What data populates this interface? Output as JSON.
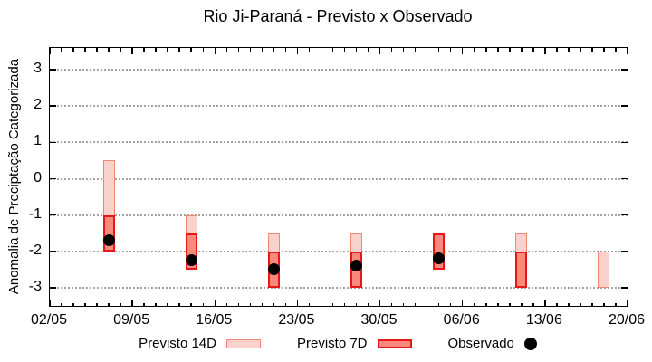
{
  "title": "Rio Ji-Paraná - Previsto x Observado",
  "chart_data": {
    "type": "bar",
    "subtype": "forecast-range-bars-with-observed-points",
    "title": "Rio Ji-Paraná - Previsto x Observado",
    "xlabel": "",
    "ylabel": "Anomalia de Preciptação Categorizada",
    "grid": "horizontal-dotted",
    "legend_position": "below-plot",
    "ylim": [
      -3.5,
      3.6
    ],
    "y_ticks": [
      3,
      2,
      1,
      0,
      -1,
      -2,
      -3
    ],
    "xlim_days": [
      0,
      49
    ],
    "x_ticks": [
      {
        "label": "02/05",
        "day": 0
      },
      {
        "label": "09/05",
        "day": 7
      },
      {
        "label": "16/05",
        "day": 14
      },
      {
        "label": "23/05",
        "day": 21
      },
      {
        "label": "30/05",
        "day": 28
      },
      {
        "label": "06/06",
        "day": 35
      },
      {
        "label": "13/06",
        "day": 42
      },
      {
        "label": "20/06",
        "day": 49
      }
    ],
    "x_minor_tick_interval_days": 1,
    "series": [
      {
        "name": "Previsto 14D",
        "type": "range-bar",
        "fill": "#f9d3cb",
        "border": "#ef8775",
        "points": [
          {
            "date": "07/05",
            "day": 5,
            "high": 0.5,
            "low": -2.0
          },
          {
            "date": "14/05",
            "day": 12,
            "high": -1.0,
            "low": -2.5
          },
          {
            "date": "21/05",
            "day": 19,
            "high": -1.5,
            "low": -3.0
          },
          {
            "date": "28/05",
            "day": 26,
            "high": -1.5,
            "low": -3.0
          },
          {
            "date": "04/06",
            "day": 33,
            "high": -1.5,
            "low": -2.5
          },
          {
            "date": "11/06",
            "day": 40,
            "high": -1.5,
            "low": -3.0
          },
          {
            "date": "18/06",
            "day": 47,
            "high": -2.0,
            "low": -3.0
          }
        ]
      },
      {
        "name": "Previsto 7D",
        "type": "range-bar",
        "fill": "#f9897d",
        "border": "#e51717",
        "points": [
          {
            "date": "07/05",
            "day": 5,
            "high": -1.0,
            "low": -2.0
          },
          {
            "date": "14/05",
            "day": 12,
            "high": -1.5,
            "low": -2.5
          },
          {
            "date": "21/05",
            "day": 19,
            "high": -2.0,
            "low": -3.0
          },
          {
            "date": "28/05",
            "day": 26,
            "high": -2.0,
            "low": -3.0
          },
          {
            "date": "04/06",
            "day": 33,
            "high": -1.5,
            "low": -2.5
          },
          {
            "date": "11/06",
            "day": 40,
            "high": -2.0,
            "low": -3.0
          }
        ]
      },
      {
        "name": "Observado",
        "type": "point",
        "color": "#000000",
        "points": [
          {
            "date": "07/05",
            "day": 5,
            "value": -1.7
          },
          {
            "date": "14/05",
            "day": 12,
            "value": -2.25
          },
          {
            "date": "21/05",
            "day": 19,
            "value": -2.5
          },
          {
            "date": "28/05",
            "day": 26,
            "value": -2.4
          },
          {
            "date": "04/06",
            "day": 33,
            "value": -2.2
          }
        ]
      }
    ]
  }
}
